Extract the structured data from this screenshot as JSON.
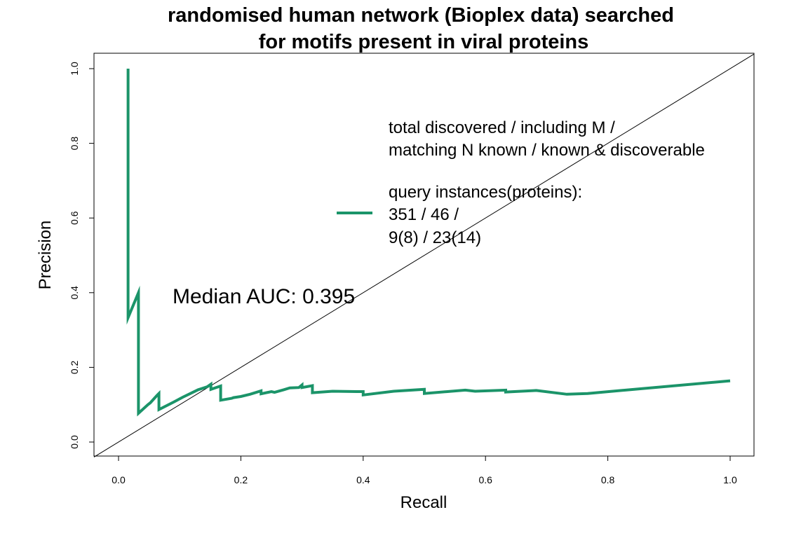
{
  "chart_data": {
    "type": "line",
    "title_lines": [
      "randomised human network (Bioplex data) searched",
      "for motifs present in viral proteins"
    ],
    "xlabel": "Recall",
    "ylabel": "Precision",
    "xlim": [
      0.0,
      1.0
    ],
    "ylim": [
      0.0,
      1.0
    ],
    "xticks": [
      "0.0",
      "0.2",
      "0.4",
      "0.6",
      "0.8",
      "1.0"
    ],
    "yticks": [
      "0.0",
      "0.2",
      "0.4",
      "0.6",
      "0.8",
      "1.0"
    ],
    "grid": false,
    "series": [
      {
        "name": "query instances(proteins)",
        "color": "#1b9469",
        "x": [
          0.0156,
          0.0156,
          0.0326,
          0.0326,
          0.048,
          0.052,
          0.063,
          0.066,
          0.066,
          0.09,
          0.105,
          0.13,
          0.134,
          0.145,
          0.151,
          0.151,
          0.167,
          0.167,
          0.185,
          0.188,
          0.2,
          0.215,
          0.233,
          0.233,
          0.25,
          0.255,
          0.27,
          0.28,
          0.295,
          0.3,
          0.3,
          0.317,
          0.317,
          0.35,
          0.39,
          0.4,
          0.4,
          0.45,
          0.5,
          0.5,
          0.567,
          0.583,
          0.633,
          0.633,
          0.683,
          0.733,
          0.767,
          1.0
        ],
        "y": [
          1.0,
          0.333,
          0.4,
          0.077,
          0.1,
          0.105,
          0.125,
          0.13,
          0.087,
          0.107,
          0.12,
          0.14,
          0.142,
          0.148,
          0.155,
          0.141,
          0.15,
          0.112,
          0.117,
          0.119,
          0.122,
          0.128,
          0.137,
          0.129,
          0.135,
          0.133,
          0.14,
          0.145,
          0.146,
          0.153,
          0.146,
          0.151,
          0.132,
          0.136,
          0.135,
          0.135,
          0.126,
          0.136,
          0.141,
          0.13,
          0.139,
          0.136,
          0.139,
          0.134,
          0.138,
          0.128,
          0.13,
          0.164
        ]
      }
    ],
    "diagonal": {
      "x": [
        0.0,
        1.0
      ],
      "y": [
        0.0,
        1.0
      ],
      "color": "#000000"
    },
    "legend": {
      "position": "upper-right",
      "header_lines": [
        "total discovered / including M /",
        "matching N known / known & discoverable"
      ],
      "entry_lines": [
        "query instances(proteins):",
        "351 / 46 /",
        "9(8) / 23(14)"
      ]
    },
    "annotation": "Median AUC: 0.395"
  }
}
